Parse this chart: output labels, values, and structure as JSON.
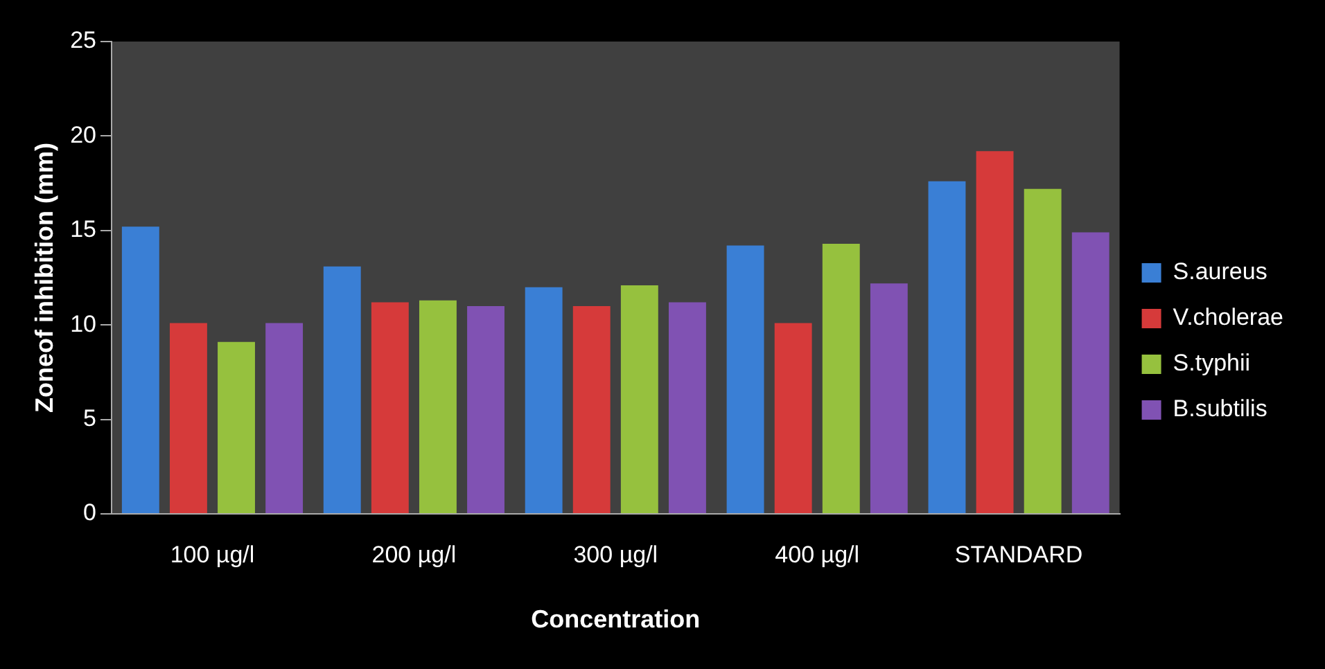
{
  "chart_data": {
    "type": "bar",
    "xlabel": "Concentration",
    "ylabel": "Zoneof inhibition (mm)",
    "categories": [
      "100 µg/l",
      "200 µg/l",
      "300 µg/l",
      "400 µg/l",
      "STANDARD"
    ],
    "series": [
      {
        "name": "S.aureus",
        "color": "#3a7fd5",
        "values": [
          15.2,
          13.1,
          12.0,
          14.2,
          17.6
        ]
      },
      {
        "name": "V.cholerae",
        "color": "#d63a3a",
        "values": [
          10.1,
          11.2,
          11.0,
          10.1,
          19.2
        ]
      },
      {
        "name": "S.typhii",
        "color": "#96c13e",
        "values": [
          9.1,
          11.3,
          12.1,
          14.3,
          17.2
        ]
      },
      {
        "name": "B.subtilis",
        "color": "#8052b3",
        "values": [
          10.1,
          11.0,
          11.2,
          12.2,
          14.9
        ]
      }
    ],
    "ylim": [
      0,
      25
    ],
    "yticks": [
      0,
      5,
      10,
      15,
      20,
      25
    ],
    "grid": false,
    "legend": "right"
  }
}
